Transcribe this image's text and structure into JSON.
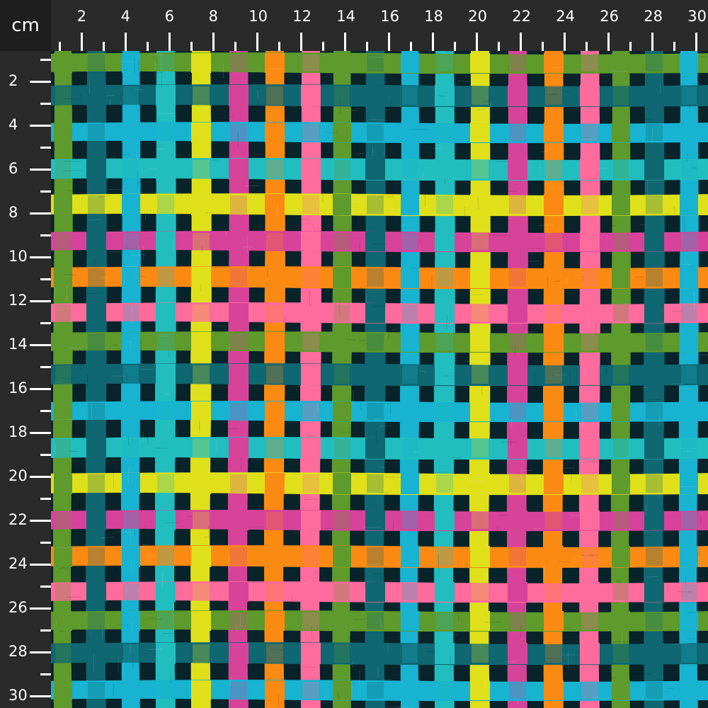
{
  "ruler": {
    "unit_label": "cm",
    "top_labels": [
      "2",
      "4",
      "6",
      "8",
      "10",
      "12",
      "14",
      "16",
      "18",
      "20",
      "22",
      "24",
      "26",
      "28",
      "30"
    ],
    "left_labels": [
      "2",
      "4",
      "6",
      "8",
      "10",
      "12",
      "14",
      "16",
      "18",
      "20",
      "22",
      "24",
      "26",
      "28",
      "30"
    ],
    "text_color": "#ffffff",
    "background": "#2a2a2a",
    "corner_background": "#1e1e1e"
  },
  "fabric": {
    "pattern": "woven plaid of painted stripes",
    "background_color": "#08232a",
    "stripe_colors": {
      "green": "#5e9a2c",
      "dark_teal": "#0f6772",
      "sky_blue": "#17b3d0",
      "turquoise": "#22bdbf",
      "yellow": "#dfe01a",
      "magenta": "#d8439a",
      "orange": "#fb8a12",
      "pink": "#fe6b9d"
    }
  }
}
